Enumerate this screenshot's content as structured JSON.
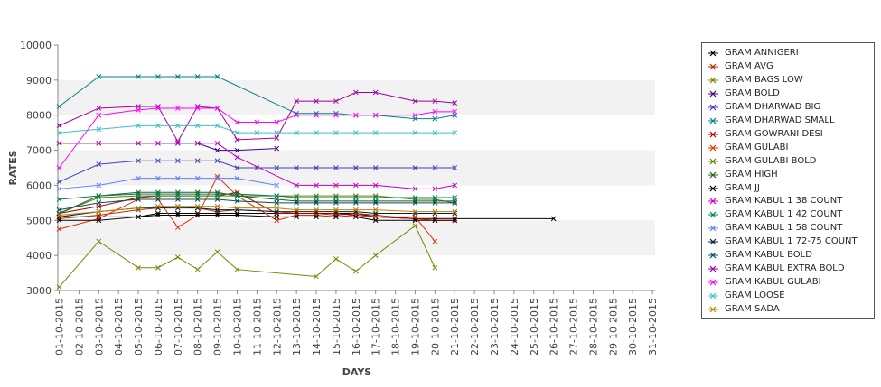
{
  "chart_data": {
    "type": "line",
    "title": "",
    "xlabel": "DAYS",
    "ylabel": "RATES",
    "ylim": [
      3000,
      10000
    ],
    "yticks": [
      "3000",
      "4000",
      "5000",
      "6000",
      "7000",
      "8000",
      "9000",
      "10000"
    ],
    "grid": "alternating horizontal bands",
    "legend_position": "right",
    "categories": [
      "01-10-2015",
      "02-10-2015",
      "03-10-2015",
      "04-10-2015",
      "05-10-2015",
      "06-10-2015",
      "07-10-2015",
      "08-10-2015",
      "09-10-2015",
      "10-10-2015",
      "11-10-2015",
      "12-10-2015",
      "13-10-2015",
      "14-10-2015",
      "15-10-2015",
      "16-10-2015",
      "17-10-2015",
      "18-10-2015",
      "19-10-2015",
      "20-10-2015",
      "21-10-2015",
      "22-10-2015",
      "23-10-2015",
      "24-10-2015",
      "25-10-2015",
      "26-10-2015",
      "27-10-2015",
      "28-10-2015",
      "29-10-2015",
      "30-10-2015",
      "31-10-2015"
    ],
    "series": [
      {
        "name": "GRAM ANNIGERI",
        "color": "#000000",
        "values": [
          5100,
          null,
          5100,
          null,
          5100,
          5200,
          5200,
          5200,
          5200,
          5200,
          null,
          5200,
          5200,
          5200,
          5200,
          5200,
          5100,
          null,
          5050,
          5050,
          5050,
          null,
          null,
          null,
          null,
          5050,
          null,
          null,
          null,
          null,
          null
        ]
      },
      {
        "name": "GRAM AVG",
        "color": "#b03000",
        "values": [
          5050,
          null,
          5150,
          null,
          5300,
          5350,
          5400,
          5350,
          5250,
          5300,
          null,
          5250,
          5200,
          5200,
          5150,
          5200,
          5150,
          null,
          5050,
          5000,
          5000,
          null,
          null,
          null,
          null,
          null,
          null,
          null,
          null,
          null,
          null
        ]
      },
      {
        "name": "GRAM BAGS LOW",
        "color": "#808000",
        "values": [
          3100,
          null,
          4400,
          null,
          3650,
          3650,
          3950,
          3600,
          4100,
          3600,
          null,
          null,
          null,
          3400,
          3900,
          3550,
          4000,
          null,
          4850,
          3650,
          null,
          null,
          null,
          null,
          null,
          null,
          null,
          null,
          null,
          null,
          null
        ]
      },
      {
        "name": "GRAM BOLD",
        "color": "#400080",
        "values": [
          7200,
          null,
          7200,
          null,
          7200,
          7200,
          7200,
          7200,
          7000,
          7000,
          null,
          7050,
          null,
          null,
          null,
          null,
          null,
          null,
          null,
          null,
          null,
          null,
          null,
          null,
          null,
          null,
          null,
          null,
          null,
          null,
          null
        ]
      },
      {
        "name": "GRAM DHARWAD BIG",
        "color": "#4040c0",
        "values": [
          6100,
          null,
          6600,
          null,
          6700,
          6700,
          6700,
          6700,
          6700,
          6500,
          6500,
          6500,
          6500,
          6500,
          6500,
          6500,
          6500,
          null,
          6500,
          6500,
          6500,
          null,
          null,
          null,
          null,
          null,
          null,
          null,
          null,
          null,
          null
        ]
      },
      {
        "name": "GRAM DHARWAD SMALL",
        "color": "#008080",
        "values": [
          8250,
          null,
          9100,
          null,
          9100,
          9100,
          9100,
          9100,
          9100,
          null,
          null,
          null,
          8050,
          8050,
          8050,
          8000,
          8000,
          null,
          7900,
          7900,
          8000,
          null,
          null,
          null,
          null,
          null,
          null,
          null,
          null,
          null,
          null
        ]
      },
      {
        "name": "GRAM GOWRANI DESI",
        "color": "#a00000",
        "values": [
          5200,
          null,
          5400,
          null,
          5650,
          5700,
          5700,
          5700,
          5700,
          5800,
          null,
          5200,
          5200,
          5200,
          5200,
          5150,
          5100,
          null,
          5050,
          5050,
          5050,
          null,
          null,
          null,
          null,
          null,
          null,
          null,
          null,
          null,
          null
        ]
      },
      {
        "name": "GRAM GULABI",
        "color": "#e03000",
        "values": [
          4750,
          null,
          5050,
          null,
          5600,
          5600,
          4800,
          5150,
          6250,
          5700,
          null,
          5000,
          5150,
          5150,
          5100,
          5150,
          5100,
          null,
          5100,
          4400,
          null,
          null,
          null,
          null,
          null,
          null,
          null,
          null,
          null,
          null,
          null
        ]
      },
      {
        "name": "GRAM GULABI BOLD",
        "color": "#608000",
        "values": [
          5200,
          null,
          5650,
          null,
          5700,
          5700,
          5700,
          5700,
          5700,
          5700,
          null,
          5700,
          5700,
          5700,
          5700,
          5700,
          5700,
          null,
          5600,
          5600,
          5500,
          null,
          null,
          null,
          null,
          null,
          null,
          null,
          null,
          null,
          null
        ]
      },
      {
        "name": "GRAM HIGH",
        "color": "#206020",
        "values": [
          5200,
          null,
          5700,
          null,
          5800,
          5800,
          5800,
          5800,
          5800,
          5700,
          null,
          5600,
          5550,
          5550,
          5550,
          5550,
          5550,
          null,
          5550,
          5550,
          5550,
          null,
          null,
          null,
          null,
          null,
          null,
          null,
          null,
          null,
          null
        ]
      },
      {
        "name": "GRAM JJ",
        "color": "#000000",
        "values": [
          5000,
          null,
          5000,
          null,
          5100,
          5150,
          5150,
          5150,
          5150,
          5150,
          null,
          5100,
          5100,
          5100,
          5100,
          5100,
          5000,
          null,
          5000,
          5000,
          5000,
          null,
          null,
          null,
          null,
          null,
          null,
          null,
          null,
          null,
          null
        ]
      },
      {
        "name": "GRAM KABUL 1 38 COUNT",
        "color": "#c000c0",
        "values": [
          7200,
          null,
          7200,
          null,
          7200,
          7200,
          7200,
          7200,
          7200,
          6800,
          null,
          null,
          6000,
          6000,
          6000,
          6000,
          6000,
          null,
          5900,
          5900,
          6000,
          null,
          null,
          null,
          null,
          null,
          null,
          null,
          null,
          null,
          null
        ]
      },
      {
        "name": "GRAM KABUL 1 42 COUNT",
        "color": "#008060",
        "values": [
          5600,
          null,
          5700,
          null,
          5750,
          5750,
          5750,
          5750,
          5750,
          5750,
          null,
          5700,
          5650,
          5650,
          5650,
          5650,
          5650,
          null,
          5650,
          5650,
          5650,
          null,
          null,
          null,
          null,
          null,
          null,
          null,
          null,
          null,
          null
        ]
      },
      {
        "name": "GRAM KABUL 1 58 COUNT",
        "color": "#6080ff",
        "values": [
          5900,
          null,
          6000,
          null,
          6200,
          6200,
          6200,
          6200,
          6200,
          6200,
          null,
          6000,
          null,
          null,
          null,
          null,
          null,
          null,
          null,
          null,
          null,
          null,
          null,
          null,
          null,
          null,
          null,
          null,
          null,
          null,
          null
        ]
      },
      {
        "name": "GRAM KABUL 1 72-75 COUNT",
        "color": "#002040",
        "values": [
          5100,
          null,
          5250,
          null,
          5350,
          5350,
          5350,
          5350,
          5300,
          5300,
          null,
          5250,
          5250,
          5250,
          5250,
          5250,
          5200,
          null,
          5200,
          5200,
          5200,
          null,
          null,
          null,
          null,
          null,
          null,
          null,
          null,
          null,
          null
        ]
      },
      {
        "name": "GRAM KABUL BOLD",
        "color": "#005060",
        "values": [
          5300,
          null,
          5500,
          null,
          5600,
          5600,
          5600,
          5600,
          5600,
          5550,
          null,
          5500,
          5500,
          5500,
          5500,
          5500,
          5500,
          null,
          5500,
          5500,
          5500,
          null,
          null,
          null,
          null,
          null,
          null,
          null,
          null,
          null,
          null
        ]
      },
      {
        "name": "GRAM KABUL EXTRA BOLD",
        "color": "#a000a0",
        "values": [
          7700,
          null,
          8200,
          null,
          8250,
          8250,
          7250,
          8250,
          8200,
          7300,
          null,
          7350,
          8400,
          8400,
          8400,
          8650,
          8650,
          null,
          8400,
          8400,
          8350,
          null,
          null,
          null,
          null,
          null,
          null,
          null,
          null,
          null,
          null
        ]
      },
      {
        "name": "GRAM KABUL GULABI",
        "color": "#ff00ff",
        "values": [
          6500,
          null,
          8000,
          null,
          8150,
          8200,
          8200,
          8200,
          8200,
          7800,
          7800,
          7800,
          8000,
          8000,
          8000,
          8000,
          8000,
          null,
          8000,
          8100,
          8100,
          null,
          null,
          null,
          null,
          null,
          null,
          null,
          null,
          null,
          null
        ]
      },
      {
        "name": "GRAM LOOSE",
        "color": "#40c0c0",
        "values": [
          7500,
          null,
          7600,
          null,
          7700,
          7700,
          7700,
          7700,
          7700,
          7500,
          7500,
          7500,
          7500,
          7500,
          7500,
          7500,
          7500,
          null,
          7500,
          7500,
          7500,
          null,
          null,
          null,
          null,
          null,
          null,
          null,
          null,
          null,
          null
        ]
      },
      {
        "name": "GRAM SADA",
        "color": "#c08000",
        "values": [
          5150,
          null,
          5250,
          null,
          5350,
          5400,
          5400,
          5400,
          5400,
          5350,
          null,
          5350,
          5300,
          5300,
          5300,
          5300,
          5300,
          null,
          5250,
          5250,
          5250,
          null,
          null,
          null,
          null,
          null,
          null,
          null,
          null,
          null,
          null
        ]
      }
    ]
  }
}
